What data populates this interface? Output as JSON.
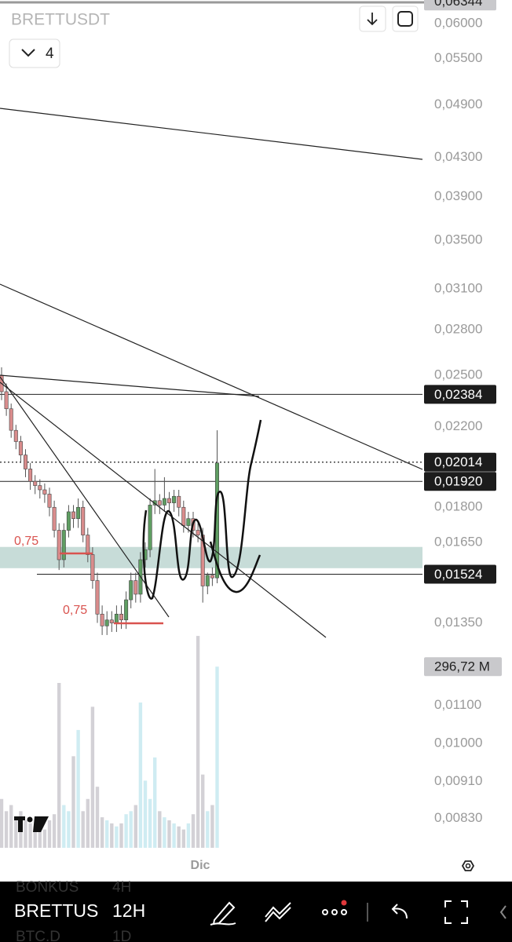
{
  "header": {
    "symbol": "BRETTUSDT",
    "layout_count": "4"
  },
  "chart_data": {
    "type": "candlestick",
    "log_scale": true,
    "ylim": [
      0.00764,
      0.0636
    ],
    "yticks": [
      {
        "value": 0.06,
        "label": "0,06000"
      },
      {
        "value": 0.055,
        "label": "0,05500"
      },
      {
        "value": 0.049,
        "label": "0,04900"
      },
      {
        "value": 0.043,
        "label": "0,04300"
      },
      {
        "value": 0.039,
        "label": "0,03900"
      },
      {
        "value": 0.035,
        "label": "0,03500"
      },
      {
        "value": 0.031,
        "label": "0,03100"
      },
      {
        "value": 0.028,
        "label": "0,02800"
      },
      {
        "value": 0.025,
        "label": "0,02500"
      },
      {
        "value": 0.022,
        "label": "0,02200"
      },
      {
        "value": 0.018,
        "label": "0,01800"
      },
      {
        "value": 0.0165,
        "label": "0,01650"
      },
      {
        "value": 0.0135,
        "label": "0,01350"
      },
      {
        "value": 0.011,
        "label": "0,01100"
      },
      {
        "value": 0.01,
        "label": "0,01000"
      },
      {
        "value": 0.0091,
        "label": "0,00910"
      },
      {
        "value": 0.0083,
        "label": "0,00830"
      }
    ],
    "x_label": "Dic",
    "up_color": "#5f9e62",
    "down_color": "#d98c8c",
    "candles": {
      "open": [
        0.025,
        0.024,
        0.023,
        0.0218,
        0.0212,
        0.0205,
        0.0198,
        0.0192,
        0.019,
        0.0188,
        0.0186,
        0.018,
        0.017,
        0.0158,
        0.017,
        0.0178,
        0.0175,
        0.018,
        0.0168,
        0.016,
        0.015,
        0.0138,
        0.0134,
        0.0136,
        0.0135,
        0.0138,
        0.0136,
        0.0143,
        0.015,
        0.0145,
        0.0158,
        0.0162,
        0.0181,
        0.0183,
        0.0181,
        0.0184,
        0.0182,
        0.0185,
        0.018,
        0.0172,
        0.0175,
        0.017,
        0.0168,
        0.0148,
        0.0152,
        0.0151
      ],
      "high": [
        0.0255,
        0.0245,
        0.0233,
        0.0221,
        0.0215,
        0.0208,
        0.0201,
        0.0195,
        0.0193,
        0.0191,
        0.0189,
        0.0183,
        0.0173,
        0.0173,
        0.0181,
        0.0181,
        0.0184,
        0.0183,
        0.0171,
        0.0163,
        0.0153,
        0.0141,
        0.0139,
        0.0139,
        0.0141,
        0.0141,
        0.0146,
        0.0153,
        0.0153,
        0.0161,
        0.0165,
        0.0184,
        0.0198,
        0.0186,
        0.0194,
        0.0187,
        0.0188,
        0.0188,
        0.0183,
        0.0178,
        0.0178,
        0.0173,
        0.0171,
        0.0153,
        0.0155,
        0.0218
      ],
      "low": [
        0.0235,
        0.0226,
        0.0214,
        0.0208,
        0.0201,
        0.0194,
        0.0188,
        0.0186,
        0.0184,
        0.0182,
        0.0176,
        0.0167,
        0.0154,
        0.0155,
        0.0167,
        0.0171,
        0.0171,
        0.0165,
        0.0157,
        0.0147,
        0.0135,
        0.0131,
        0.0131,
        0.0132,
        0.0132,
        0.0133,
        0.0133,
        0.014,
        0.0142,
        0.0142,
        0.0155,
        0.0159,
        0.0177,
        0.0177,
        0.0178,
        0.0178,
        0.0178,
        0.0176,
        0.0169,
        0.0169,
        0.0167,
        0.0165,
        0.0142,
        0.0145,
        0.0148,
        0.0149
      ],
      "close": [
        0.024,
        0.023,
        0.0218,
        0.0212,
        0.0205,
        0.0198,
        0.0192,
        0.019,
        0.0188,
        0.0186,
        0.018,
        0.017,
        0.0158,
        0.017,
        0.0178,
        0.0175,
        0.018,
        0.0168,
        0.016,
        0.015,
        0.0138,
        0.0134,
        0.0136,
        0.0135,
        0.0138,
        0.0136,
        0.0143,
        0.015,
        0.0145,
        0.0158,
        0.0162,
        0.0181,
        0.0183,
        0.0181,
        0.0184,
        0.0182,
        0.0185,
        0.018,
        0.0172,
        0.0175,
        0.017,
        0.0168,
        0.0148,
        0.0152,
        0.0151,
        0.0201
      ]
    },
    "volume": {
      "values": [
        80,
        60,
        70,
        50,
        60,
        45,
        40,
        35,
        40,
        30,
        45,
        55,
        270,
        70,
        60,
        150,
        193,
        60,
        80,
        231,
        100,
        50,
        45,
        40,
        35,
        40,
        55,
        60,
        70,
        238,
        110,
        80,
        148,
        60,
        50,
        45,
        40,
        35,
        30,
        40,
        55,
        347,
        120,
        60,
        70,
        296.72
      ],
      "vlim": [
        0,
        360
      ],
      "up_color": "#cfecf2",
      "down_color": "#d3d1d6",
      "last_label": {
        "value": 296.72,
        "label": "296,72 M"
      }
    },
    "zone": [
      0.01547,
      0.01631
    ],
    "zone_color": "#c7dcd8",
    "price_tags": [
      {
        "value": 0.06344,
        "label": "0,06344",
        "line": "none",
        "style": "light"
      },
      {
        "value": 0.02384,
        "label": "0,02384",
        "line": "solid",
        "style": "dark"
      },
      {
        "value": 0.02014,
        "label": "0,02014",
        "line": "dotted",
        "style": "dark"
      },
      {
        "value": 0.0192,
        "label": "0,01920",
        "line": "solid",
        "style": "dark"
      },
      {
        "value": 0.01524,
        "label": "0,01524",
        "line": "solid",
        "style": "dark"
      }
    ],
    "fib_labels": [
      "0,75",
      "0,75"
    ]
  },
  "bottom_bar": {
    "symbol": "BRETTUS",
    "interval": "12H",
    "ghost_top": [
      "BONKUS",
      "4H"
    ],
    "ghost_bottom": [
      "BTC.D",
      "1D"
    ]
  }
}
